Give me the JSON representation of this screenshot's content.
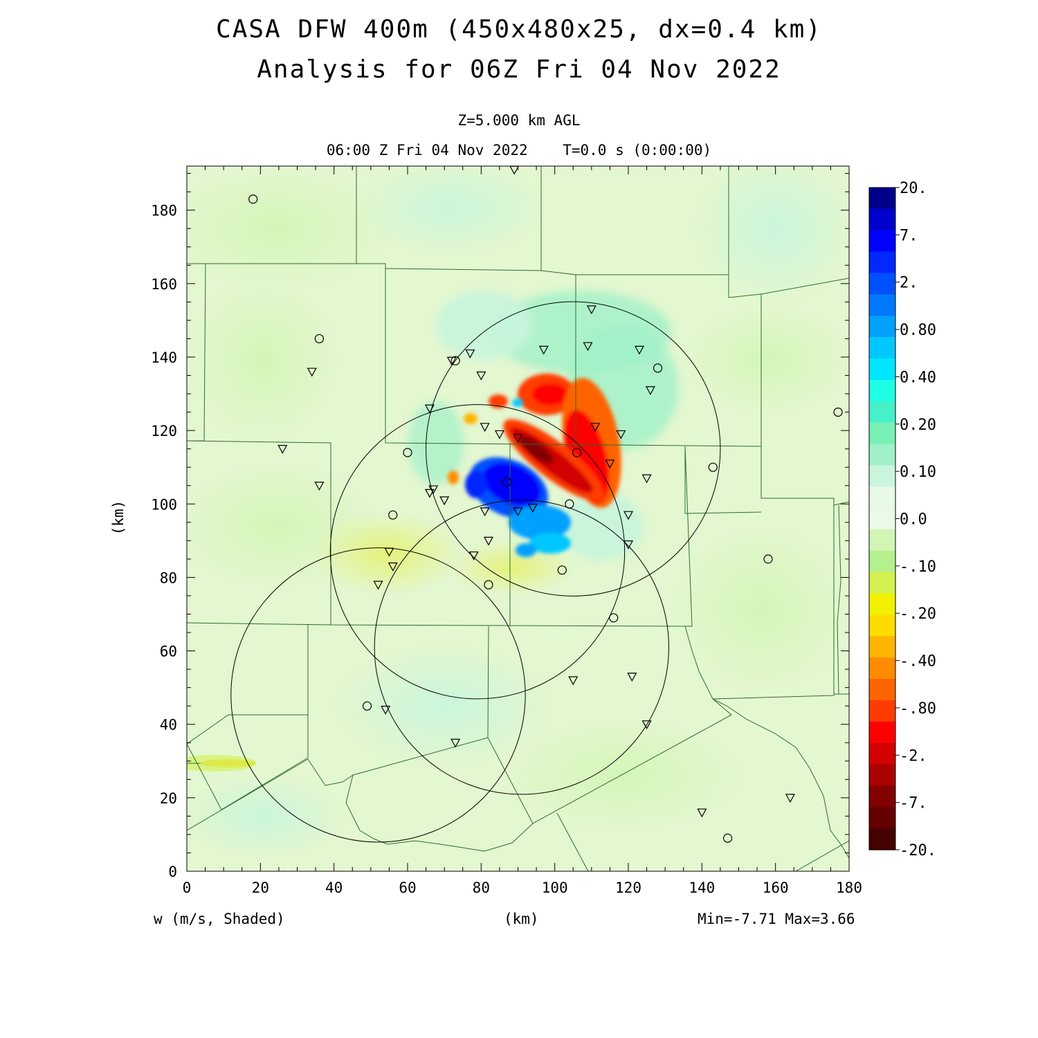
{
  "title_line1": "CASA DFW 400m (450x480x25, dx=0.4 km)",
  "title_line2": "Analysis for 06Z Fri 04 Nov 2022",
  "subtitle_line1": "Z=5.000 km AGL",
  "subtitle_line2": "06:00 Z Fri 04 Nov 2022    T=0.0 s (0:00:00)",
  "footer": {
    "variable": "w (m/s, Shaded)",
    "x_unit": "(km)",
    "minmax": "Min=-7.71 Max=3.66"
  },
  "chart_data": {
    "type": "heatmap",
    "title": "CASA DFW 400m (450x480x25, dx=0.4 km)",
    "subtitle": "Analysis for 06Z Fri 04 Nov 2022",
    "xlabel": "(km)",
    "ylabel": "(km)",
    "xlim": [
      0,
      180
    ],
    "ylim": [
      0,
      192
    ],
    "x_ticks": [
      0,
      20,
      40,
      60,
      80,
      100,
      120,
      140,
      160,
      180
    ],
    "y_ticks": [
      0,
      20,
      40,
      60,
      80,
      100,
      120,
      140,
      160,
      180
    ],
    "field": "w (m/s, Shaded)",
    "min": -7.71,
    "max": 3.66,
    "colorbar": {
      "labels": [
        "20.",
        "7.",
        "2.",
        "0.80",
        "0.40",
        "0.20",
        "0.10",
        "0.0",
        "-.10",
        "-.20",
        "-.40",
        "-.80",
        "-2.",
        "-7.",
        "-20."
      ],
      "colors": [
        "#00008b",
        "#0000cd",
        "#0000ff",
        "#0028ff",
        "#0050ff",
        "#0078ff",
        "#00a0ff",
        "#00c8ff",
        "#00e6ff",
        "#1effe6",
        "#46f0c8",
        "#78f0b4",
        "#a0f0c8",
        "#c8f5dc",
        "#e6fae6",
        "#ebfae6",
        "#d2f5b4",
        "#b4f08c",
        "#d2f050",
        "#f0f000",
        "#ffdc00",
        "#ffb400",
        "#ff8c00",
        "#ff6400",
        "#ff3c00",
        "#ff0000",
        "#d20000",
        "#aa0000",
        "#820000",
        "#640000",
        "#460000"
      ]
    },
    "features": [
      {
        "type": "updraft",
        "x": [
          85,
          115
        ],
        "y": [
          95,
          135
        ],
        "peak": 3.66
      },
      {
        "type": "downdraft",
        "x": [
          78,
          102
        ],
        "y": [
          85,
          112
        ],
        "peak": -7.71
      }
    ],
    "radar_circles": [
      {
        "center": [
          105,
          115
        ],
        "radius_km": 40
      },
      {
        "center": [
          79,
          87
        ],
        "radius_km": 40
      },
      {
        "center": [
          91,
          61
        ],
        "radius_km": 40
      },
      {
        "center": [
          52,
          48
        ],
        "radius_km": 40
      }
    ],
    "stations_triangle": [
      [
        89,
        191
      ],
      [
        110,
        153
      ],
      [
        109,
        143
      ],
      [
        123,
        142
      ],
      [
        97,
        142
      ],
      [
        77,
        141
      ],
      [
        72,
        139
      ],
      [
        80,
        135
      ],
      [
        34,
        136
      ],
      [
        126,
        131
      ],
      [
        66,
        126
      ],
      [
        81,
        121
      ],
      [
        111,
        121
      ],
      [
        85,
        119
      ],
      [
        118,
        119
      ],
      [
        26,
        115
      ],
      [
        90,
        118
      ],
      [
        115,
        111
      ],
      [
        125,
        107
      ],
      [
        36,
        105
      ],
      [
        67,
        104
      ],
      [
        66,
        103
      ],
      [
        70,
        101
      ],
      [
        94,
        99
      ],
      [
        90,
        98
      ],
      [
        81,
        98
      ],
      [
        120,
        97
      ],
      [
        82,
        90
      ],
      [
        120,
        89
      ],
      [
        78,
        86
      ],
      [
        55,
        87
      ],
      [
        56,
        83
      ],
      [
        52,
        78
      ],
      [
        121,
        53
      ],
      [
        105,
        52
      ],
      [
        54,
        44
      ],
      [
        125,
        40
      ],
      [
        73,
        35
      ],
      [
        164,
        20
      ],
      [
        140,
        16
      ]
    ],
    "stations_circle": [
      [
        18,
        183
      ],
      [
        36,
        145
      ],
      [
        73,
        139
      ],
      [
        128,
        137
      ],
      [
        177,
        125
      ],
      [
        60,
        114
      ],
      [
        106,
        114
      ],
      [
        143,
        110
      ],
      [
        87,
        106
      ],
      [
        104,
        100
      ],
      [
        56,
        97
      ],
      [
        158,
        85
      ],
      [
        102,
        82
      ],
      [
        82,
        78
      ],
      [
        116,
        69
      ],
      [
        49,
        45
      ],
      [
        147,
        9
      ]
    ],
    "grid": false
  }
}
